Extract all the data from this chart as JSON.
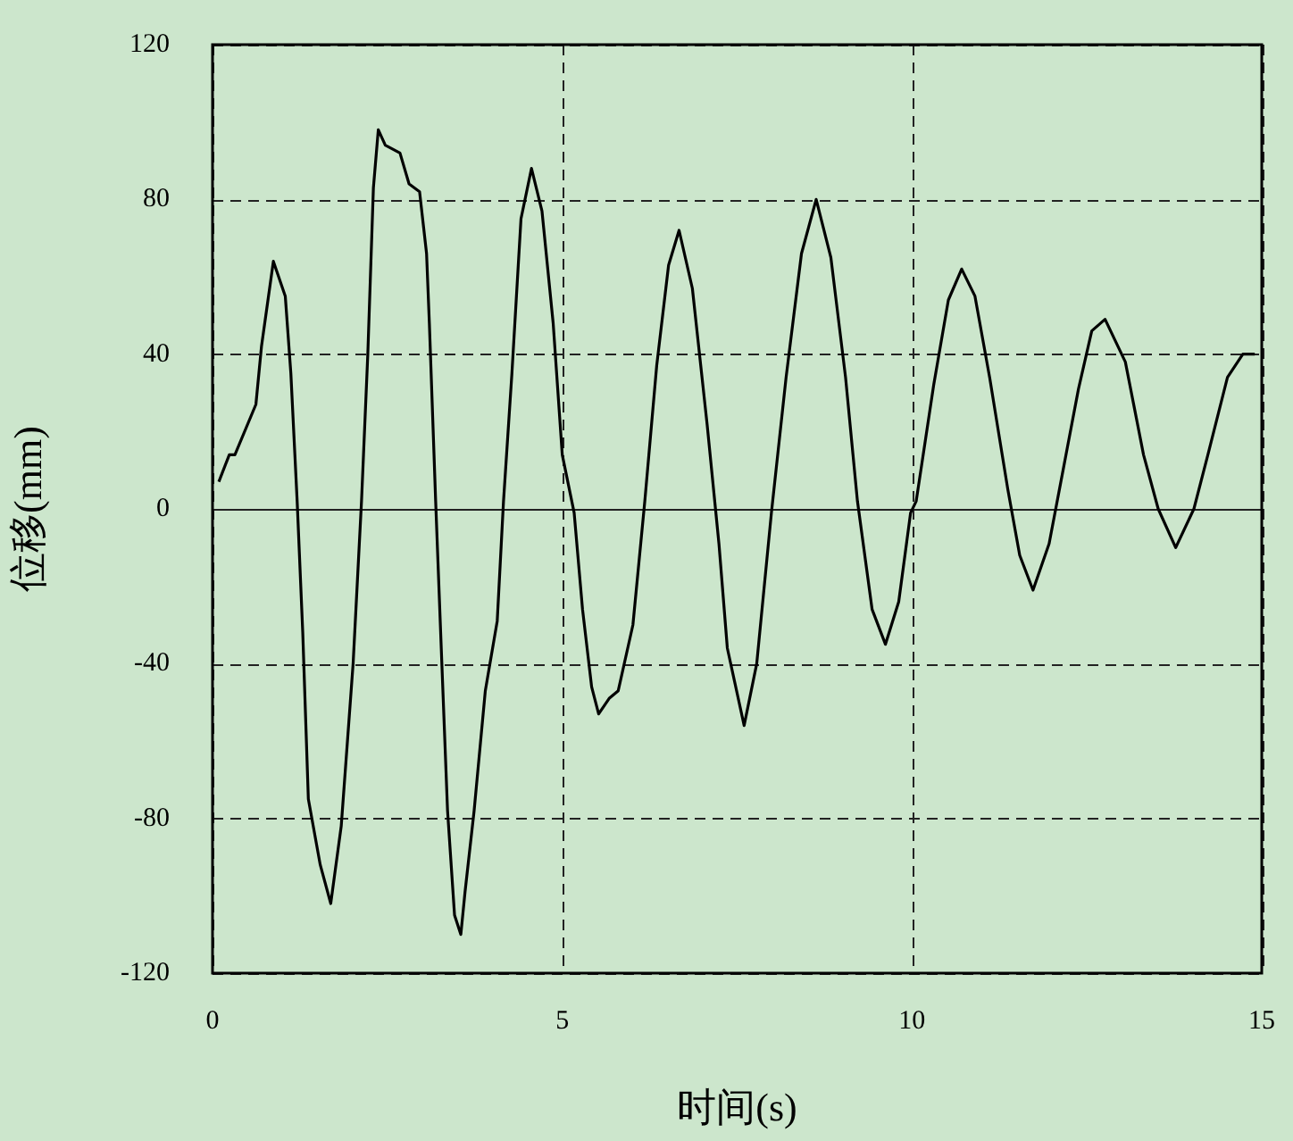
{
  "chart_data": {
    "type": "line",
    "xlabel": "时间(s)",
    "ylabel": "位移(mm)",
    "x": [
      0.09,
      0.24,
      0.32,
      0.62,
      0.7,
      0.87,
      1.04,
      1.12,
      1.21,
      1.29,
      1.37,
      1.54,
      1.69,
      1.84,
      2.01,
      2.13,
      2.22,
      2.3,
      2.37,
      2.47,
      2.68,
      2.81,
      2.96,
      3.06,
      3.1,
      3.19,
      3.27,
      3.36,
      3.46,
      3.55,
      3.61,
      3.74,
      3.9,
      4.07,
      4.16,
      4.28,
      4.41,
      4.56,
      4.71,
      4.87,
      5.0,
      5.17,
      5.29,
      5.42,
      5.52,
      5.67,
      5.8,
      6.01,
      6.18,
      6.35,
      6.52,
      6.67,
      6.86,
      7.07,
      7.24,
      7.36,
      7.6,
      7.78,
      7.99,
      8.2,
      8.42,
      8.63,
      8.84,
      9.05,
      9.22,
      9.43,
      9.62,
      9.81,
      9.98,
      10.06,
      10.31,
      10.52,
      10.71,
      10.9,
      11.11,
      11.37,
      11.54,
      11.73,
      11.96,
      12.17,
      12.38,
      12.57,
      12.76,
      13.05,
      13.31,
      13.52,
      13.77,
      14.03,
      14.23,
      14.51,
      14.73,
      14.9
    ],
    "series": [
      {
        "color": "#000000",
        "values": [
          7,
          14,
          14,
          27,
          42,
          64,
          55,
          35,
          2,
          -32,
          -75,
          -92,
          -102,
          -82,
          -40,
          2,
          40,
          83,
          98,
          94,
          92,
          84,
          82,
          66,
          48,
          2,
          -36,
          -78,
          -105,
          -110,
          -99,
          -78,
          -47,
          -29,
          2,
          35,
          75,
          88,
          77,
          48,
          14,
          -1,
          -26,
          -46,
          -53,
          -49,
          -47,
          -30,
          2,
          37,
          63,
          72,
          57,
          22,
          -9,
          -36,
          -56,
          -40,
          -1,
          34,
          66,
          80,
          65,
          34,
          2,
          -26,
          -35,
          -24,
          -1,
          2,
          32,
          54,
          62,
          55,
          34,
          5,
          -12,
          -21,
          -9,
          11,
          31,
          46,
          49,
          38,
          14,
          0,
          -10,
          0,
          14,
          34,
          40,
          40
        ]
      }
    ],
    "xlim": [
      0,
      15
    ],
    "xticks": [
      0,
      5,
      10,
      15
    ],
    "ylim": [
      -120,
      120
    ],
    "yticks": [
      -120,
      -80,
      -40,
      0,
      40,
      80,
      120
    ],
    "grid": true,
    "legend": false,
    "line_style": "solid",
    "marker": "none"
  }
}
